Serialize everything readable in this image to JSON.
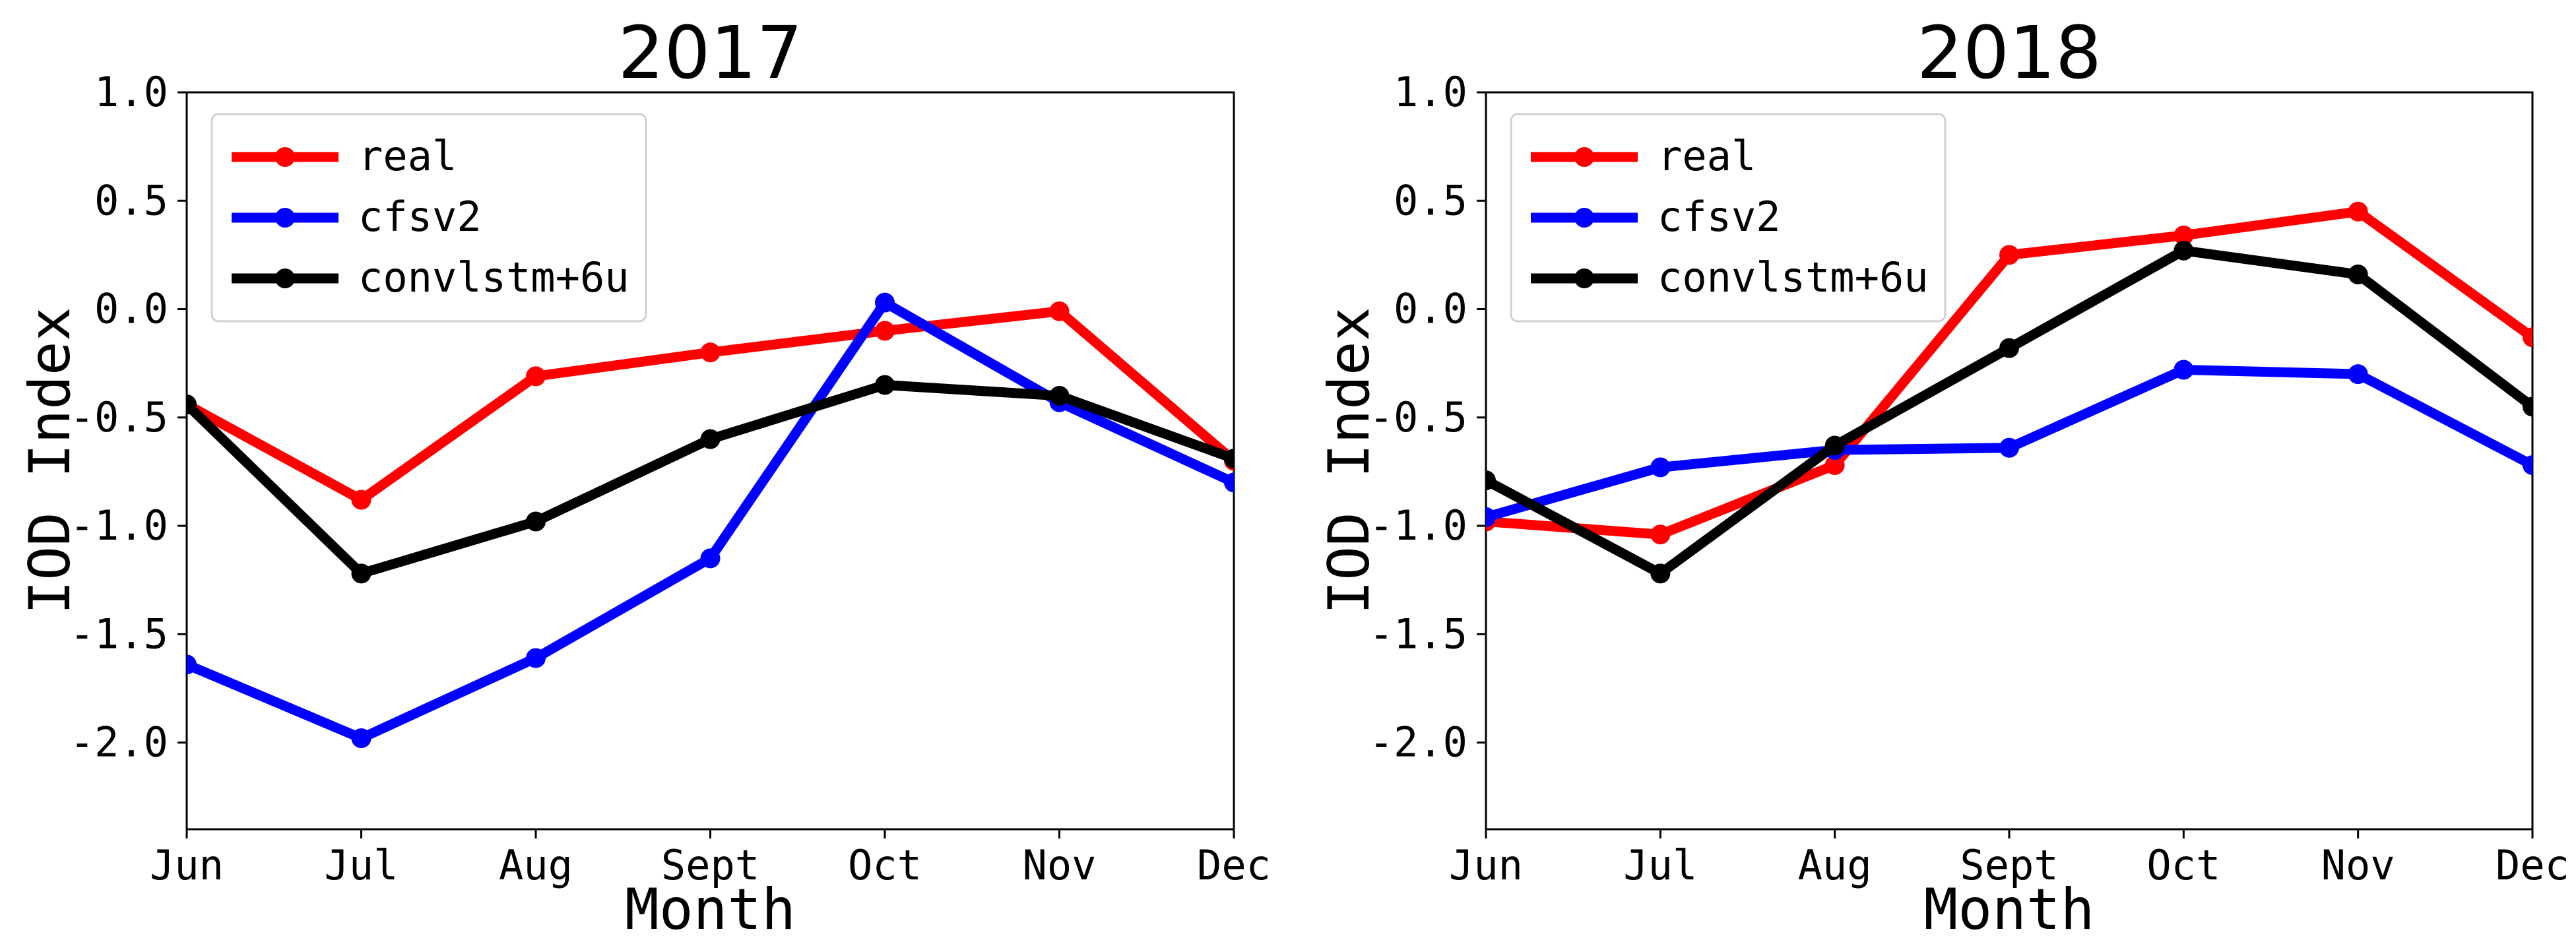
{
  "chart_data": [
    {
      "type": "line",
      "title": "2017",
      "xlabel": "Month",
      "ylabel": "IOD Index",
      "categories": [
        "Jun",
        "Jul",
        "Aug",
        "Sept",
        "Oct",
        "Nov",
        "Dec"
      ],
      "ylim": [
        -2.4,
        1.0
      ],
      "yticks": [
        1.0,
        0.5,
        0.0,
        -0.5,
        -1.0,
        -1.5,
        -2.0
      ],
      "ytick_labels": [
        "1.0",
        "0.5",
        "0.0",
        "-0.5",
        "-1.0",
        "-1.5",
        "-2.0"
      ],
      "legend_position": "top-left",
      "grid": false,
      "series": [
        {
          "name": "real",
          "color": "#ff0000",
          "values": [
            -0.44,
            -0.88,
            -0.31,
            -0.2,
            -0.1,
            -0.01,
            -0.7
          ]
        },
        {
          "name": "cfsv2",
          "color": "#0000ff",
          "values": [
            -1.64,
            -1.98,
            -1.61,
            -1.15,
            0.03,
            -0.43,
            -0.8
          ]
        },
        {
          "name": "convlstm+6u",
          "color": "#000000",
          "values": [
            -0.44,
            -1.22,
            -0.98,
            -0.6,
            -0.35,
            -0.4,
            -0.69
          ]
        }
      ]
    },
    {
      "type": "line",
      "title": "2018",
      "xlabel": "Month",
      "ylabel": "IOD Index",
      "categories": [
        "Jun",
        "Jul",
        "Aug",
        "Sept",
        "Oct",
        "Nov",
        "Dec"
      ],
      "ylim": [
        -2.4,
        1.0
      ],
      "yticks": [
        1.0,
        0.5,
        0.0,
        -0.5,
        -1.0,
        -1.5,
        -2.0
      ],
      "ytick_labels": [
        "1.0",
        "0.5",
        "0.0",
        "-0.5",
        "-1.0",
        "-1.5",
        "-2.0"
      ],
      "legend_position": "top-left",
      "grid": false,
      "series": [
        {
          "name": "real",
          "color": "#ff0000",
          "values": [
            -0.98,
            -1.04,
            -0.72,
            0.25,
            0.34,
            0.45,
            -0.13
          ]
        },
        {
          "name": "cfsv2",
          "color": "#0000ff",
          "values": [
            -0.96,
            -0.73,
            -0.65,
            -0.64,
            -0.28,
            -0.3,
            -0.72
          ]
        },
        {
          "name": "convlstm+6u",
          "color": "#000000",
          "values": [
            -0.79,
            -1.22,
            -0.63,
            -0.18,
            0.27,
            0.16,
            -0.45
          ]
        }
      ]
    }
  ]
}
